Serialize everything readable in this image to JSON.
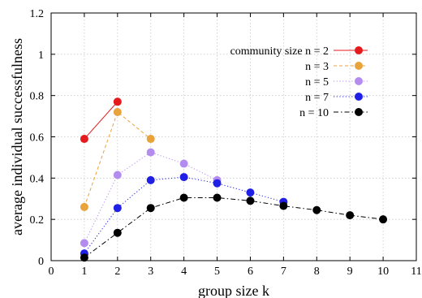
{
  "chart_data": {
    "type": "line",
    "xlabel": "group size k",
    "ylabel": "average individual successfulness",
    "xlim": [
      0,
      11
    ],
    "ylim": [
      0,
      1.2
    ],
    "xticks": [
      "0",
      "1",
      "2",
      "3",
      "4",
      "5",
      "6",
      "7",
      "8",
      "9",
      "10",
      "11"
    ],
    "yticks": [
      "0",
      "0.2",
      "0.4",
      "0.6",
      "0.8",
      "1",
      "1.2"
    ],
    "grid": true,
    "legend_position": "top-right",
    "series": [
      {
        "name": "community size n = 2",
        "color": "#e41a1c",
        "line_style": "solid",
        "points": [
          [
            1,
            0.59
          ],
          [
            2,
            0.77
          ]
        ]
      },
      {
        "name": "n = 3",
        "color": "#e8a33b",
        "line_style": "dashed",
        "points": [
          [
            1,
            0.26
          ],
          [
            2,
            0.72
          ],
          [
            3,
            0.59
          ]
        ]
      },
      {
        "name": "n = 5",
        "color": "#b48cf0",
        "line_style": "dotted",
        "points": [
          [
            1,
            0.085
          ],
          [
            2,
            0.415
          ],
          [
            3,
            0.525
          ],
          [
            4,
            0.47
          ],
          [
            5,
            0.39
          ]
        ]
      },
      {
        "name": "n = 7",
        "color": "#1f1fe6",
        "line_style": "dotted",
        "points": [
          [
            1,
            0.035
          ],
          [
            2,
            0.255
          ],
          [
            3,
            0.39
          ],
          [
            4,
            0.405
          ],
          [
            5,
            0.375
          ],
          [
            6,
            0.33
          ],
          [
            7,
            0.285
          ]
        ]
      },
      {
        "name": "n = 10",
        "color": "#000000",
        "line_style": "dashdot",
        "points": [
          [
            1,
            0.015
          ],
          [
            2,
            0.135
          ],
          [
            3,
            0.255
          ],
          [
            4,
            0.305
          ],
          [
            5,
            0.305
          ],
          [
            6,
            0.29
          ],
          [
            7,
            0.265
          ],
          [
            8,
            0.245
          ],
          [
            9,
            0.22
          ],
          [
            10,
            0.2
          ]
        ]
      }
    ]
  }
}
